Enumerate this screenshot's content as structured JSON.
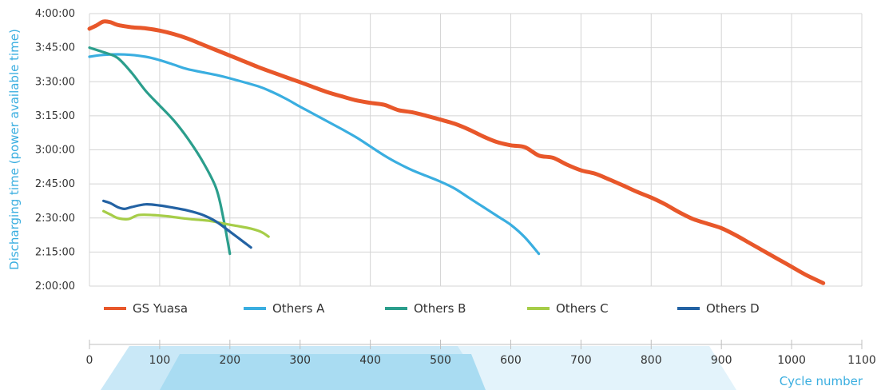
{
  "chart_data": {
    "type": "line",
    "ylabel": "Discharging time (power available time)",
    "xlabel": "Cycle number",
    "x_ticks": [
      "0",
      "100",
      "200",
      "300",
      "400",
      "500",
      "600",
      "700",
      "800",
      "900",
      "1000",
      "1100"
    ],
    "xlim": [
      0,
      1100
    ],
    "y_ticks": [
      "4:00:00",
      "3:45:00",
      "3:30:00",
      "3:15:00",
      "3:00:00",
      "2:45:00",
      "2:30:00",
      "2:15:00",
      "2:00:00"
    ],
    "ylim_minutes": [
      120,
      240
    ],
    "grid": true,
    "legend_position": "bottom",
    "accent_color": "#3aaee0",
    "series": [
      {
        "name": "GS Yuasa",
        "color": "#e8572a",
        "points": [
          [
            0,
            233.3
          ],
          [
            10,
            234.8
          ],
          [
            20,
            236.5
          ],
          [
            30,
            236.2
          ],
          [
            40,
            235
          ],
          [
            60,
            234
          ],
          [
            80,
            233.5
          ],
          [
            100,
            232.5
          ],
          [
            120,
            231
          ],
          [
            140,
            229
          ],
          [
            160,
            226.5
          ],
          [
            180,
            224
          ],
          [
            200,
            221.5
          ],
          [
            220,
            219
          ],
          [
            240,
            216.5
          ],
          [
            260,
            214.2
          ],
          [
            280,
            212
          ],
          [
            300,
            209.8
          ],
          [
            320,
            207.5
          ],
          [
            340,
            205.3
          ],
          [
            360,
            203.5
          ],
          [
            380,
            201.8
          ],
          [
            400,
            200.7
          ],
          [
            420,
            199.8
          ],
          [
            440,
            197.5
          ],
          [
            460,
            196.5
          ],
          [
            480,
            195
          ],
          [
            500,
            193.3
          ],
          [
            520,
            191.5
          ],
          [
            540,
            189
          ],
          [
            560,
            186
          ],
          [
            580,
            183.5
          ],
          [
            600,
            182
          ],
          [
            620,
            181.2
          ],
          [
            640,
            177.5
          ],
          [
            660,
            176.5
          ],
          [
            680,
            173.5
          ],
          [
            700,
            171
          ],
          [
            720,
            169.5
          ],
          [
            740,
            167
          ],
          [
            760,
            164.3
          ],
          [
            780,
            161.5
          ],
          [
            800,
            159
          ],
          [
            820,
            156
          ],
          [
            840,
            152.5
          ],
          [
            860,
            149.5
          ],
          [
            880,
            147.5
          ],
          [
            900,
            145.5
          ],
          [
            920,
            142.5
          ],
          [
            940,
            139
          ],
          [
            960,
            135.5
          ],
          [
            980,
            132
          ],
          [
            1000,
            128.5
          ],
          [
            1020,
            125
          ],
          [
            1045,
            121.3
          ]
        ]
      },
      {
        "name": "Others A",
        "color": "#3aaee0",
        "points": [
          [
            0,
            221
          ],
          [
            20,
            221.8
          ],
          [
            50,
            222
          ],
          [
            80,
            221
          ],
          [
            100,
            219.5
          ],
          [
            120,
            217.5
          ],
          [
            140,
            215.5
          ],
          [
            180,
            213
          ],
          [
            200,
            211.5
          ],
          [
            240,
            208
          ],
          [
            260,
            205.5
          ],
          [
            280,
            202.5
          ],
          [
            300,
            199
          ],
          [
            330,
            194
          ],
          [
            360,
            189
          ],
          [
            380,
            185.5
          ],
          [
            400,
            181.5
          ],
          [
            420,
            177.5
          ],
          [
            440,
            174
          ],
          [
            460,
            171
          ],
          [
            480,
            168.5
          ],
          [
            500,
            166
          ],
          [
            520,
            163
          ],
          [
            540,
            159
          ],
          [
            560,
            155
          ],
          [
            580,
            151
          ],
          [
            600,
            147
          ],
          [
            620,
            141.5
          ],
          [
            640,
            134.2
          ]
        ]
      },
      {
        "name": "Others B",
        "color": "#2b9e8c",
        "points": [
          [
            0,
            225
          ],
          [
            20,
            223
          ],
          [
            40,
            220.5
          ],
          [
            60,
            214
          ],
          [
            80,
            206
          ],
          [
            100,
            199.5
          ],
          [
            120,
            193
          ],
          [
            140,
            185
          ],
          [
            160,
            175.5
          ],
          [
            180,
            163.5
          ],
          [
            190,
            151
          ],
          [
            200,
            134.2
          ]
        ]
      },
      {
        "name": "Others C",
        "color": "#a6cd48",
        "points": [
          [
            20,
            153
          ],
          [
            30,
            151.5
          ],
          [
            40,
            150
          ],
          [
            55,
            149.5
          ],
          [
            70,
            151.3
          ],
          [
            90,
            151.3
          ],
          [
            110,
            150.8
          ],
          [
            130,
            150
          ],
          [
            150,
            149.3
          ],
          [
            170,
            148.8
          ],
          [
            190,
            147.6
          ],
          [
            210,
            146.5
          ],
          [
            230,
            145.3
          ],
          [
            245,
            143.8
          ],
          [
            255,
            141.8
          ]
        ]
      },
      {
        "name": "Others D",
        "color": "#2362a3",
        "points": [
          [
            20,
            157.5
          ],
          [
            30,
            156.5
          ],
          [
            40,
            154.8
          ],
          [
            50,
            154
          ],
          [
            60,
            154.8
          ],
          [
            80,
            156
          ],
          [
            100,
            155.5
          ],
          [
            120,
            154.5
          ],
          [
            140,
            153.3
          ],
          [
            160,
            151.5
          ],
          [
            180,
            148.5
          ],
          [
            200,
            144
          ],
          [
            215,
            140.5
          ],
          [
            230,
            137
          ]
        ]
      }
    ]
  }
}
